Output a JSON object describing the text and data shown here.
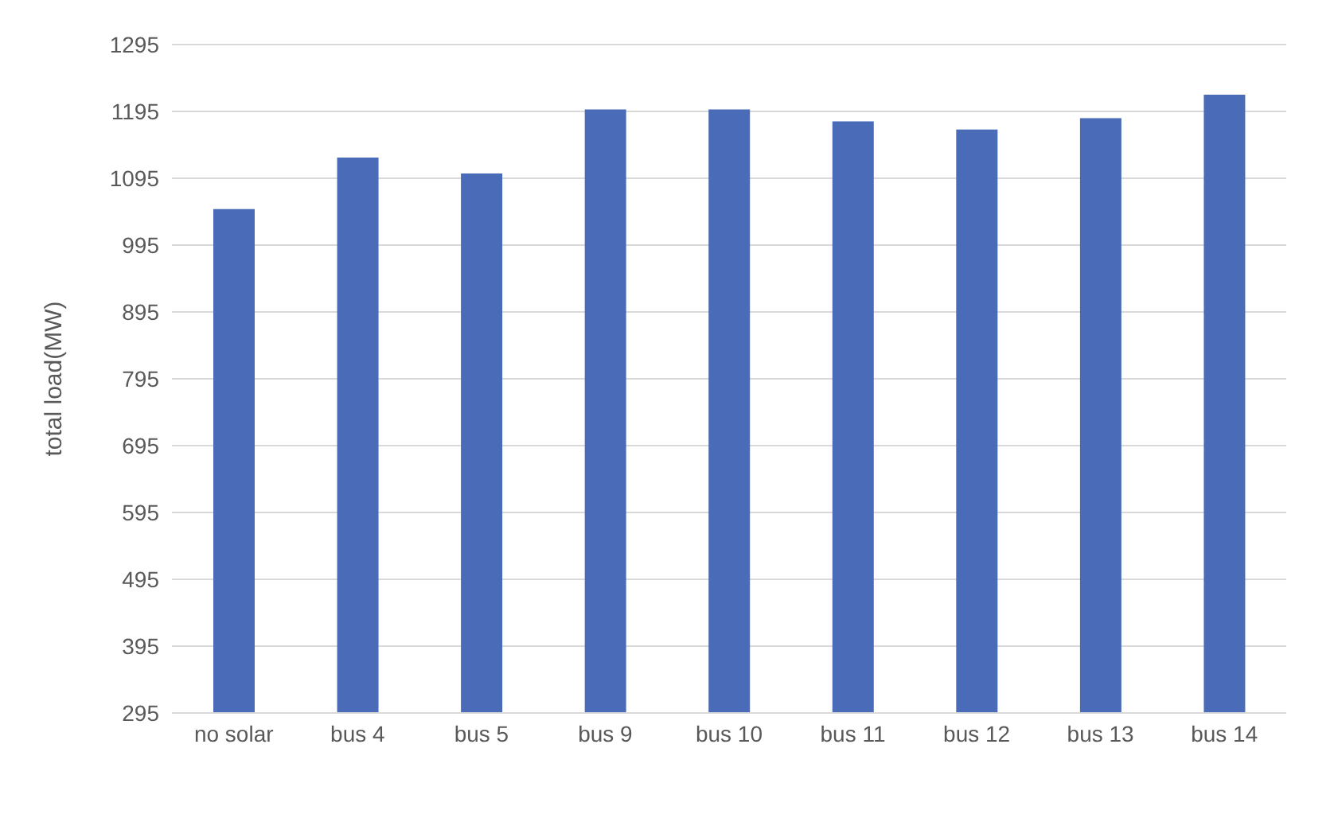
{
  "chart_data": {
    "type": "bar",
    "ylabel": "total load(MW)",
    "categories": [
      "no solar",
      "bus 4",
      "bus 5",
      "bus 9",
      "bus 10",
      "bus 11",
      "bus 12",
      "bus 13",
      "bus 14"
    ],
    "values": [
      1049,
      1126,
      1102,
      1198,
      1198,
      1180,
      1168,
      1185,
      1220
    ],
    "color": "#4a6cb8",
    "ylim": [
      295,
      1295
    ],
    "yticks": [
      295,
      395,
      495,
      595,
      695,
      795,
      895,
      995,
      1095,
      1195,
      1295
    ],
    "grid": "y"
  }
}
